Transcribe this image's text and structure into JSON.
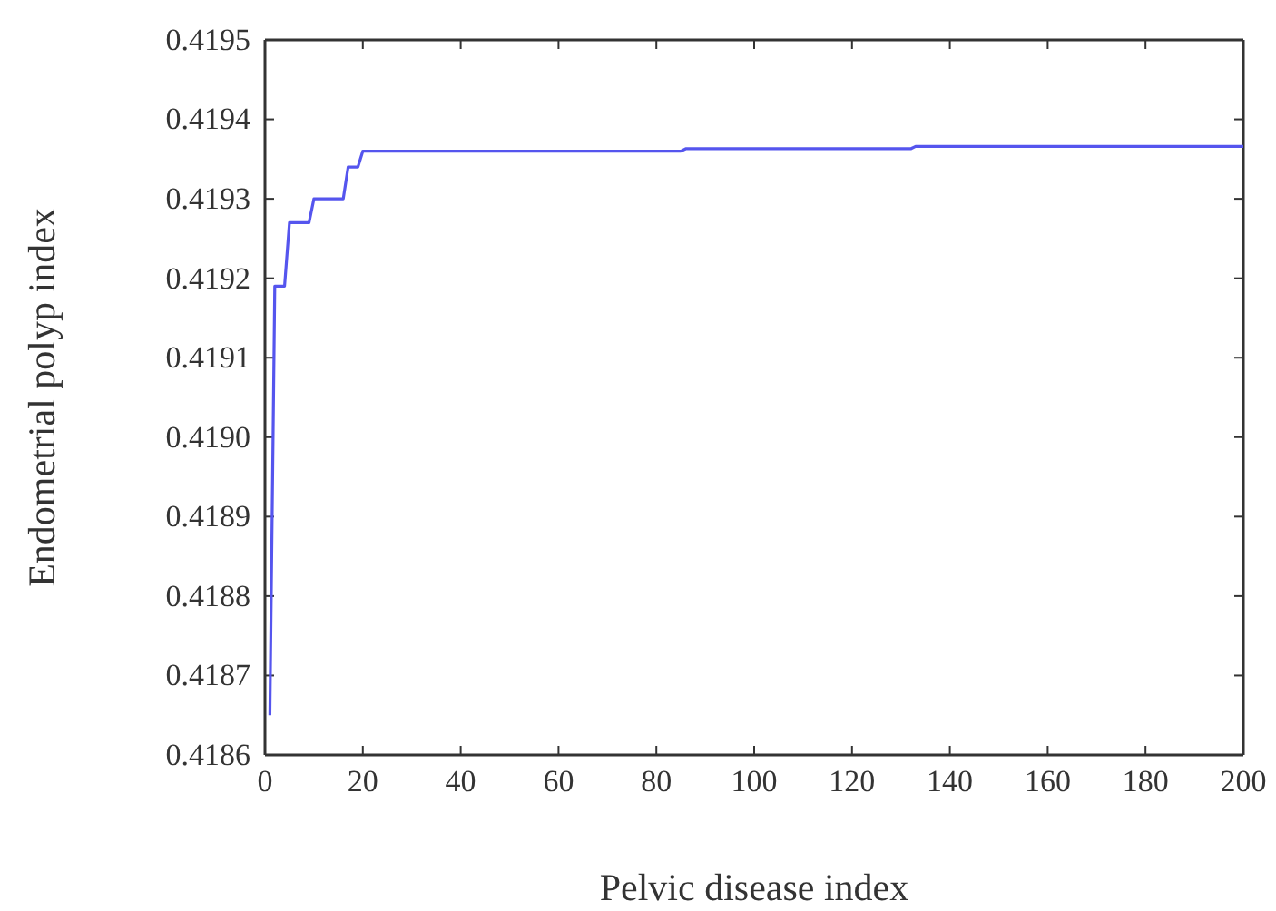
{
  "chart_data": {
    "type": "line",
    "xlabel": "Pelvic disease index",
    "ylabel": "Endometrial polyp index",
    "x": [
      1,
      2,
      4,
      5,
      9,
      10,
      16,
      17,
      19,
      20,
      85,
      86,
      132,
      133,
      200
    ],
    "series": [
      {
        "color": "#5555ee",
        "values": [
          0.41865,
          0.41919,
          0.41919,
          0.41927,
          0.41927,
          0.4193,
          0.4193,
          0.41934,
          0.41934,
          0.41936,
          0.41936,
          0.419363,
          0.419363,
          0.419366,
          0.419366
        ]
      }
    ],
    "xlim": [
      0,
      200
    ],
    "xticks": [
      0,
      20,
      40,
      60,
      80,
      100,
      120,
      140,
      160,
      180,
      200
    ],
    "ylim": [
      0.4186,
      0.4195
    ],
    "yticks": [
      {
        "value": 0.4186,
        "label": "0.4186"
      },
      {
        "value": 0.4187,
        "label": "0.4187"
      },
      {
        "value": 0.4188,
        "label": "0.4188"
      },
      {
        "value": 0.4189,
        "label": "0.4189"
      },
      {
        "value": 0.419,
        "label": "0.4190"
      },
      {
        "value": 0.4191,
        "label": "0.4191"
      },
      {
        "value": 0.4192,
        "label": "0.4192"
      },
      {
        "value": 0.4193,
        "label": "0.4193"
      },
      {
        "value": 0.4194,
        "label": "0.4194"
      },
      {
        "value": 0.4195,
        "label": "0.4195"
      }
    ],
    "grid": false,
    "marker": "none",
    "line_style": "solid"
  }
}
